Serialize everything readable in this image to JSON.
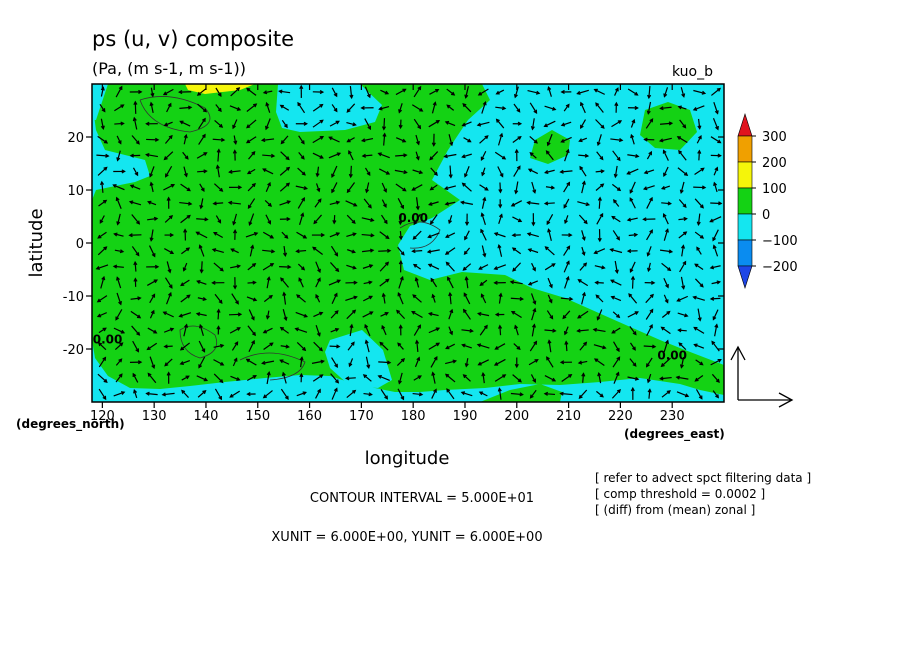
{
  "chart_data": {
    "type": "contour",
    "title": "ps (u, v) composite",
    "subtitle": "(Pa, (m s-1, m s-1))",
    "tag": "kuo_b",
    "xlabel": "longitude",
    "ylabel": "latitude",
    "x_unit_label": "(degrees_east)",
    "y_unit_label": "(degrees_north)",
    "xlim": [
      118,
      240
    ],
    "ylim": [
      -30,
      30
    ],
    "x_ticks": [
      120,
      130,
      140,
      150,
      160,
      170,
      180,
      190,
      200,
      210,
      220,
      230
    ],
    "y_ticks": [
      20,
      10,
      0,
      -10,
      -20
    ],
    "colorbar": {
      "labels": [
        "300",
        "200",
        "100",
        "0",
        "−100",
        "−200"
      ],
      "colors": [
        "#e0141e",
        "#f0a000",
        "#f5f50a",
        "#14d214",
        "#14e6f0",
        "#0a8cf0",
        "#1e46e6"
      ]
    },
    "contour_labels": [
      {
        "text": "0.00",
        "lon": 180,
        "lat": 4
      },
      {
        "text": "0.00",
        "lon": 121,
        "lat": -19
      },
      {
        "text": "0.00",
        "lon": 230,
        "lat": -22
      }
    ],
    "vector_field": {
      "convergence_center": {
        "lon": 178,
        "lat": -2
      },
      "reference_arrow": true
    },
    "notes": {
      "contour_interval": "CONTOUR INTERVAL = 5.000E+01",
      "units": "XUNIT = 6.000E+00, YUNIT = 6.000E+00",
      "info": [
        "[ refer to advect spct filtering data ]",
        "[ comp threshold = 0.0002 ]",
        "[ (diff) from (mean) zonal ]"
      ]
    }
  }
}
